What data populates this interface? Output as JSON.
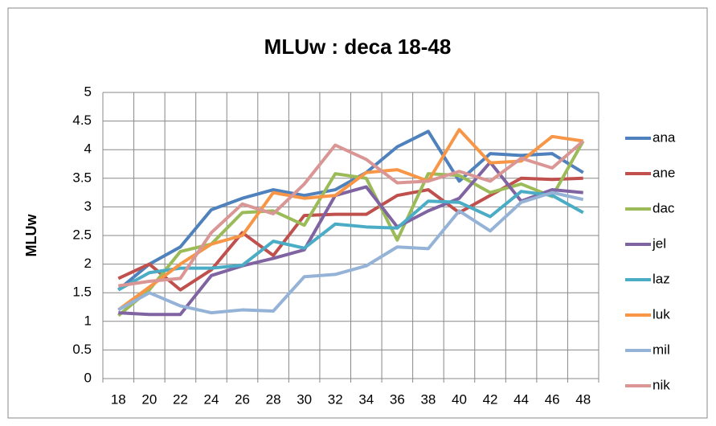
{
  "chart_data": {
    "type": "line",
    "title": "MLUw : deca 18-48",
    "y_label": "MLUw",
    "categories": [
      "18",
      "20",
      "22",
      "24",
      "26",
      "28",
      "30",
      "32",
      "34",
      "36",
      "38",
      "40",
      "42",
      "44",
      "46",
      "48"
    ],
    "ylim": [
      0,
      5
    ],
    "yticks": [
      0,
      0.5,
      1,
      1.5,
      2,
      2.5,
      3,
      3.5,
      4,
      4.5,
      5
    ],
    "grid": true,
    "legend": "right",
    "series": [
      {
        "name": "ana",
        "color": "#4F81BD",
        "values": [
          1.55,
          2.0,
          2.3,
          2.95,
          3.15,
          3.3,
          3.2,
          3.3,
          3.6,
          4.05,
          4.32,
          3.45,
          3.93,
          3.9,
          3.93,
          3.6
        ]
      },
      {
        "name": "ane",
        "color": "#C0504D",
        "values": [
          1.75,
          2.0,
          1.55,
          1.9,
          2.55,
          2.15,
          2.85,
          2.87,
          2.87,
          3.2,
          3.3,
          2.9,
          3.2,
          3.5,
          3.48,
          3.5
        ]
      },
      {
        "name": "dac",
        "color": "#9BBB59",
        "values": [
          1.1,
          1.55,
          2.22,
          2.35,
          2.9,
          2.93,
          2.68,
          3.58,
          3.5,
          2.42,
          3.58,
          3.55,
          3.25,
          3.4,
          3.18,
          4.15
        ]
      },
      {
        "name": "jel",
        "color": "#8064A2",
        "values": [
          1.15,
          1.12,
          1.12,
          1.8,
          1.97,
          2.1,
          2.25,
          3.2,
          3.35,
          2.65,
          2.93,
          3.15,
          3.78,
          3.1,
          3.3,
          3.25
        ]
      },
      {
        "name": "laz",
        "color": "#4BACC6",
        "values": [
          1.55,
          1.85,
          1.93,
          1.93,
          1.98,
          2.4,
          2.28,
          2.7,
          2.65,
          2.63,
          3.1,
          3.08,
          2.83,
          3.27,
          3.2,
          2.9
        ]
      },
      {
        "name": "luk",
        "color": "#F79646",
        "values": [
          1.2,
          1.6,
          2.0,
          2.35,
          2.5,
          3.25,
          3.15,
          3.2,
          3.6,
          3.65,
          3.45,
          4.35,
          3.77,
          3.8,
          4.23,
          4.15
        ]
      },
      {
        "name": "mil",
        "color": "#95B3D7",
        "values": [
          1.2,
          1.5,
          1.27,
          1.15,
          1.2,
          1.18,
          1.78,
          1.82,
          1.97,
          2.3,
          2.27,
          2.93,
          2.58,
          3.08,
          3.25,
          3.13
        ]
      },
      {
        "name": "nik",
        "color": "#D99694",
        "values": [
          1.62,
          1.7,
          1.75,
          2.55,
          3.05,
          2.88,
          3.4,
          4.08,
          3.83,
          3.42,
          3.45,
          3.62,
          3.45,
          3.85,
          3.68,
          4.15
        ]
      }
    ]
  }
}
